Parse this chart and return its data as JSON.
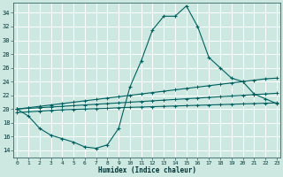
{
  "xlabel": "Humidex (Indice chaleur)",
  "bg_color": "#cce8e0",
  "grid_color": "#ffffff",
  "line_color": "#006060",
  "x_ticks": [
    0,
    1,
    2,
    3,
    4,
    5,
    6,
    7,
    8,
    9,
    10,
    11,
    12,
    13,
    14,
    15,
    16,
    17,
    18,
    19,
    20,
    21,
    22,
    23
  ],
  "y_ticks": [
    14,
    16,
    18,
    20,
    22,
    24,
    26,
    28,
    30,
    32,
    34
  ],
  "ylim": [
    13.0,
    35.5
  ],
  "xlim": [
    -0.3,
    23.3
  ],
  "curve1_x": [
    0,
    1,
    2,
    3,
    4,
    5,
    6,
    7,
    8,
    9,
    10,
    11,
    12,
    13,
    14,
    15,
    16,
    17,
    18,
    19,
    20,
    21,
    22,
    23
  ],
  "curve1_y": [
    20.0,
    19.0,
    17.2,
    16.2,
    15.7,
    15.2,
    14.5,
    14.3,
    14.8,
    17.2,
    23.2,
    27.0,
    31.5,
    33.5,
    33.5,
    35.0,
    32.0,
    27.5,
    26.0,
    24.5,
    24.0,
    22.2,
    21.5,
    20.8
  ],
  "line2_x": [
    0,
    1,
    2,
    3,
    4,
    5,
    6,
    7,
    8,
    9,
    10,
    11,
    12,
    13,
    14,
    15,
    16,
    17,
    18,
    19,
    20,
    21,
    22,
    23
  ],
  "line2_y": [
    20.0,
    20.2,
    20.4,
    20.6,
    20.8,
    21.0,
    21.2,
    21.4,
    21.6,
    21.8,
    22.0,
    22.2,
    22.4,
    22.6,
    22.8,
    23.0,
    23.2,
    23.4,
    23.6,
    23.8,
    24.0,
    24.2,
    24.4,
    24.5
  ],
  "line3_x": [
    0,
    1,
    2,
    3,
    4,
    5,
    6,
    7,
    8,
    9,
    10,
    11,
    12,
    13,
    14,
    15,
    16,
    17,
    18,
    19,
    20,
    21,
    22,
    23
  ],
  "line3_y": [
    20.0,
    20.1,
    20.2,
    20.3,
    20.4,
    20.5,
    20.6,
    20.7,
    20.8,
    20.9,
    21.0,
    21.1,
    21.2,
    21.3,
    21.4,
    21.5,
    21.6,
    21.7,
    21.8,
    21.9,
    22.0,
    22.1,
    22.2,
    22.3
  ],
  "line4_x": [
    0,
    1,
    2,
    3,
    4,
    5,
    6,
    7,
    8,
    9,
    10,
    11,
    12,
    13,
    14,
    15,
    16,
    17,
    18,
    19,
    20,
    21,
    22,
    23
  ],
  "line4_y": [
    19.5,
    19.6,
    19.7,
    19.8,
    19.9,
    19.95,
    20.0,
    20.05,
    20.1,
    20.2,
    20.25,
    20.3,
    20.35,
    20.4,
    20.45,
    20.5,
    20.55,
    20.6,
    20.65,
    20.7,
    20.75,
    20.8,
    20.85,
    20.9
  ]
}
